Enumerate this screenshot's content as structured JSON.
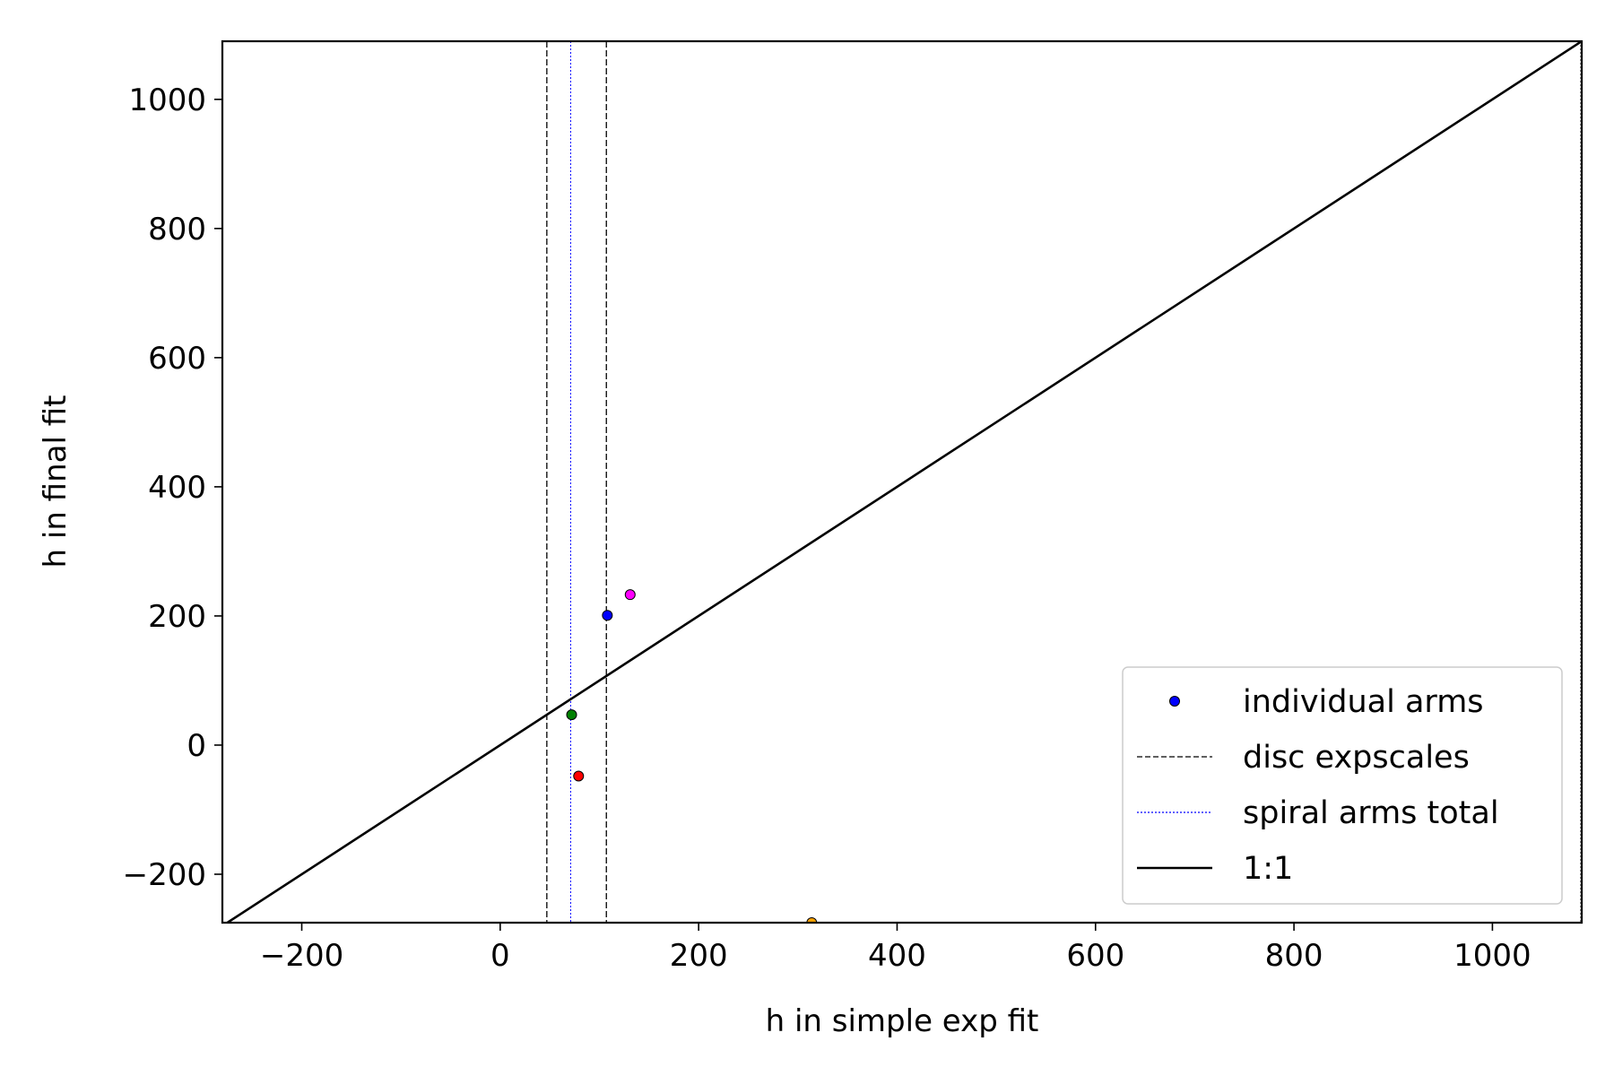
{
  "chart_data": {
    "type": "scatter",
    "title": "",
    "xlabel": "h in simple exp fit",
    "ylabel": "h in final fit",
    "xlim": [
      -280,
      1090
    ],
    "ylim": [
      -275,
      1090
    ],
    "xticks": [
      -200,
      0,
      200,
      400,
      600,
      800,
      1000
    ],
    "yticks": [
      -200,
      0,
      200,
      400,
      600,
      800,
      1000
    ],
    "xtick_labels": [
      "−200",
      "0",
      "200",
      "400",
      "600",
      "800",
      "1000"
    ],
    "ytick_labels": [
      "−200",
      "0",
      "200",
      "400",
      "600",
      "800",
      "1000"
    ],
    "grid": false,
    "legend_position": "lower-right",
    "points": [
      {
        "x": 108,
        "y": 201,
        "color": "#0000ff"
      },
      {
        "x": 131,
        "y": 233,
        "color": "#ff00ff"
      },
      {
        "x": 72,
        "y": 47,
        "color": "#008000"
      },
      {
        "x": 79,
        "y": -48,
        "color": "#ff0000"
      },
      {
        "x": 314,
        "y": -275,
        "color": "#ffa500"
      }
    ],
    "disc_expscales": [
      47,
      107
    ],
    "spiral_arms_total": 71,
    "right_edge_line": 1090,
    "one_to_one": {
      "from": -280,
      "to": 1090
    },
    "legend": [
      {
        "label": "individual arms",
        "kind": "marker",
        "color": "#0000ff"
      },
      {
        "label": "disc expscales",
        "kind": "dashed",
        "color": "#000000"
      },
      {
        "label": "spiral arms total",
        "kind": "dotted",
        "color": "#0000ff"
      },
      {
        "label": "1:1",
        "kind": "solid",
        "color": "#000000"
      }
    ]
  }
}
